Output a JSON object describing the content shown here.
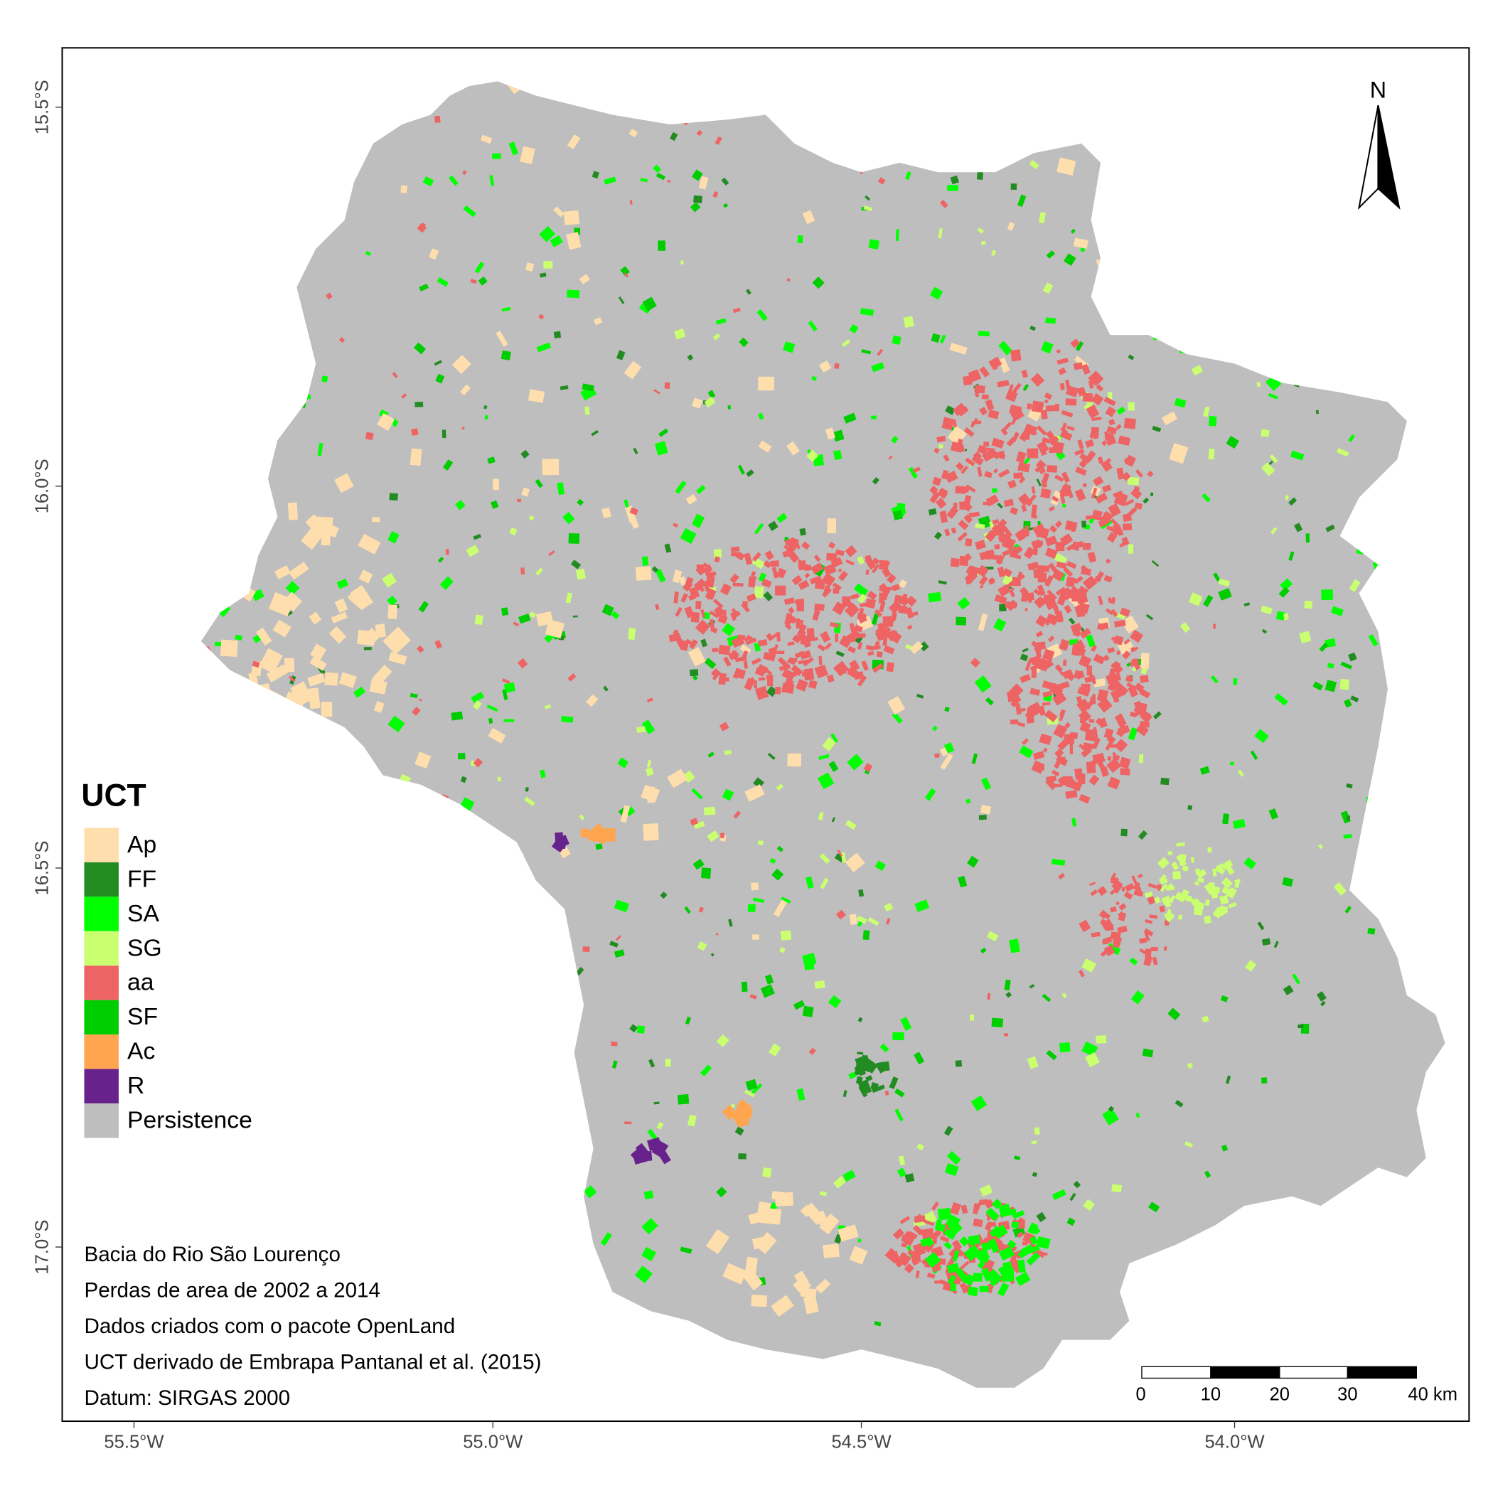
{
  "map": {
    "legend": {
      "title": "UCT",
      "items": [
        {
          "label": "Ap",
          "color": "#FFDEAD"
        },
        {
          "label": "FF",
          "color": "#228B22"
        },
        {
          "label": "SA",
          "color": "#00FF00"
        },
        {
          "label": "SG",
          "color": "#CAFF70"
        },
        {
          "label": "aa",
          "color": "#EE6363"
        },
        {
          "label": "SF",
          "color": "#00CD00"
        },
        {
          "label": "Ac",
          "color": "#FFA54F"
        },
        {
          "label": "R",
          "color": "#68228B"
        },
        {
          "label": "Persistence",
          "color": "#BEBEBE"
        }
      ]
    },
    "notes": [
      "Bacia do Rio São Lourenço",
      "Perdas de area de 2002 a 2014",
      "Dados criados com o pacote OpenLand",
      "UCT derivado de Embrapa Pantanal et al. (2015)",
      "Datum: SIRGAS 2000"
    ],
    "x_ticks": [
      "55.5°W",
      "55.0°W",
      "54.5°W",
      "54.0°W"
    ],
    "y_ticks": [
      "15.5°S",
      "16.0°S",
      "16.5°S",
      "17.0°S"
    ],
    "north_label": "N",
    "scale_bar": {
      "labels": [
        "0",
        "10",
        "20",
        "30",
        "40 km"
      ]
    }
  }
}
